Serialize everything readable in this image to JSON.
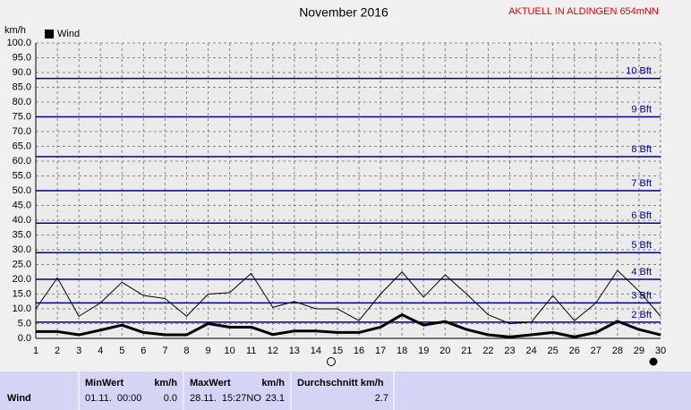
{
  "chart_data": {
    "type": "line",
    "title": "November 2016",
    "y_label": "km/h",
    "x": [
      1,
      2,
      3,
      4,
      5,
      6,
      7,
      8,
      9,
      10,
      11,
      12,
      13,
      14,
      15,
      16,
      17,
      18,
      19,
      20,
      21,
      22,
      23,
      24,
      25,
      26,
      27,
      28,
      29,
      30
    ],
    "xlim": [
      1,
      30
    ],
    "xticks": [
      1,
      2,
      3,
      4,
      5,
      6,
      7,
      8,
      9,
      10,
      11,
      12,
      13,
      14,
      15,
      16,
      17,
      18,
      19,
      20,
      21,
      22,
      23,
      24,
      25,
      26,
      27,
      28,
      29,
      30
    ],
    "ylim": [
      0,
      100
    ],
    "yticks": [
      {
        "value": 0,
        "label": "0.0"
      },
      {
        "value": 5,
        "label": "5.0"
      },
      {
        "value": 10,
        "label": "10.0"
      },
      {
        "value": 15,
        "label": "15.0"
      },
      {
        "value": 20,
        "label": "20.0"
      },
      {
        "value": 25,
        "label": "25.0"
      },
      {
        "value": 30,
        "label": "30.0"
      },
      {
        "value": 35,
        "label": "35.0"
      },
      {
        "value": 40,
        "label": "40.0"
      },
      {
        "value": 45,
        "label": "45.0"
      },
      {
        "value": 50,
        "label": "50.0"
      },
      {
        "value": 55,
        "label": "55.0"
      },
      {
        "value": 60,
        "label": "60.0"
      },
      {
        "value": 65,
        "label": "65.0"
      },
      {
        "value": 70,
        "label": "70.0"
      },
      {
        "value": 75,
        "label": "75.0"
      },
      {
        "value": 80,
        "label": "80.0"
      },
      {
        "value": 85,
        "label": "85.0"
      },
      {
        "value": 90,
        "label": "90.0"
      },
      {
        "value": 95,
        "label": "95.0"
      },
      {
        "value": 100,
        "label": "100.0"
      }
    ],
    "grid": true,
    "beaufort": [
      {
        "value": 5.5,
        "label": "2 Bft"
      },
      {
        "value": 12,
        "label": "3 Bft"
      },
      {
        "value": 20,
        "label": "4 Bft"
      },
      {
        "value": 29,
        "label": "5 Bft"
      },
      {
        "value": 39,
        "label": "6 Bft"
      },
      {
        "value": 50,
        "label": "7 Bft"
      },
      {
        "value": 61.5,
        "label": "8 Bft"
      },
      {
        "value": 75,
        "label": "9 Bft"
      },
      {
        "value": 88,
        "label": "10 Bft"
      }
    ],
    "beaufort_color": "#00008b",
    "legend": "top-left",
    "series": [
      {
        "color": "#000000",
        "width": 1,
        "values": [
          10,
          20.5,
          7.5,
          12,
          19,
          14.5,
          13.5,
          7.5,
          15,
          15.5,
          22,
          10.5,
          12.5,
          10,
          10,
          6,
          15,
          22.5,
          14,
          21.5,
          15,
          8,
          5,
          5.5,
          14.5,
          6,
          12,
          23,
          16,
          7.5
        ]
      },
      {
        "name": "Wind",
        "color": "#000000",
        "width": 3,
        "values": [
          2.3,
          2.3,
          1.2,
          2.8,
          4.5,
          2,
          1.2,
          1.2,
          5,
          3.8,
          3.8,
          1.3,
          2.5,
          2.5,
          2,
          2,
          3.8,
          8,
          4.5,
          5.7,
          3,
          1.2,
          0.5,
          1.2,
          2,
          0.5,
          2,
          5.8,
          3,
          1.2
        ]
      }
    ]
  },
  "header": {
    "station": "AKTUELL IN ALDINGEN 654mNN"
  },
  "table": {
    "headers": [
      "MinWert",
      "km/h",
      "MaxWert",
      "km/h",
      "Durchschnitt km/h"
    ],
    "rows": [
      [
        "Wind",
        "01.11.  00:00",
        "0.0",
        "28.11.  15:27NO",
        "23.1",
        "2.7"
      ]
    ]
  }
}
